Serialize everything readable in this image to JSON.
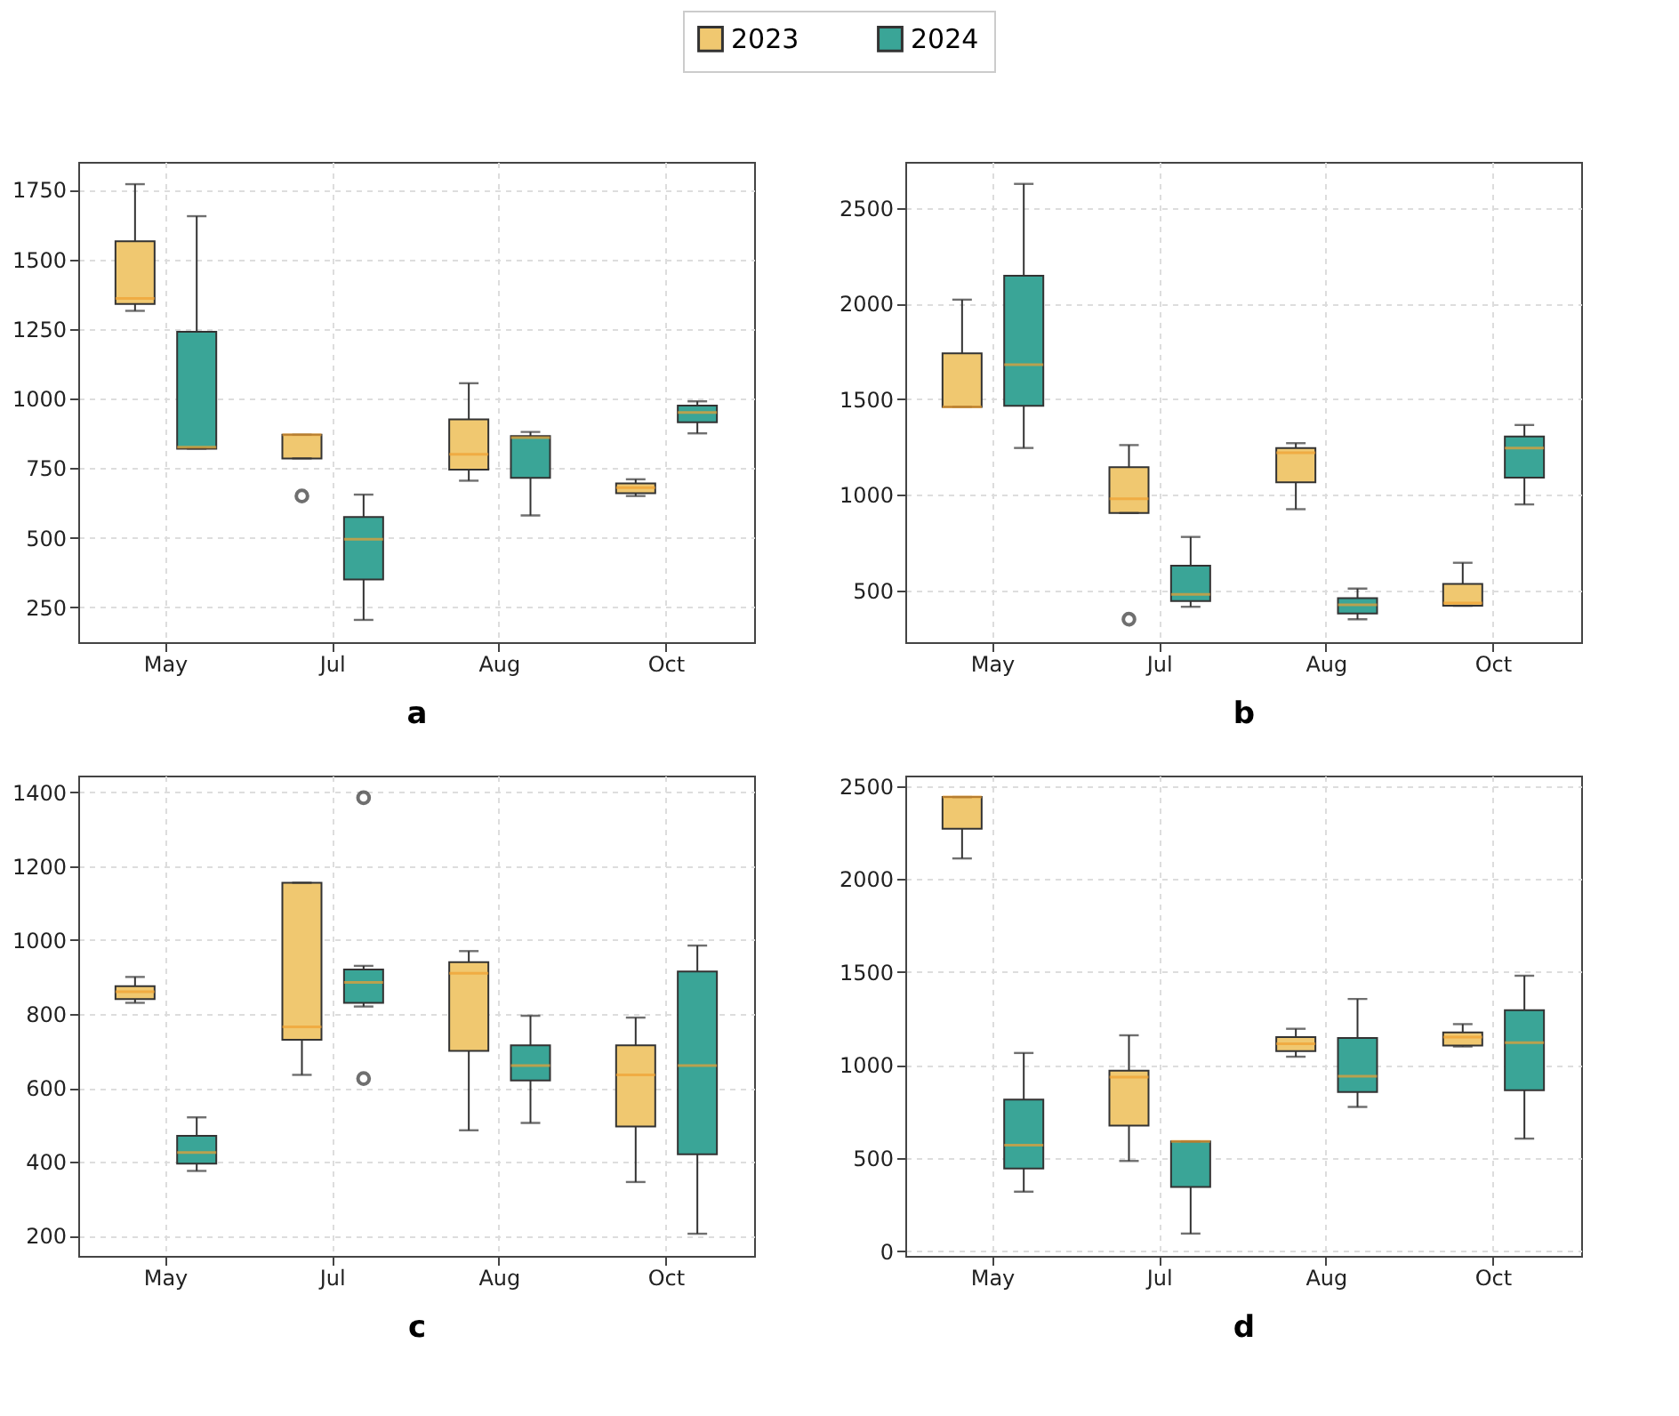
{
  "chart_data": [
    {
      "type": "box",
      "xlabel": "a",
      "categories": [
        "May",
        "Jul",
        "Aug",
        "Oct"
      ],
      "ylim": [
        125,
        1850
      ],
      "yticks": [
        250,
        500,
        750,
        1000,
        1250,
        1500,
        1750
      ],
      "grid": true,
      "legend": "top",
      "series": [
        {
          "name": "2023",
          "color": "#f0c870",
          "boxes": [
            {
              "low": 1315,
              "q1": 1340,
              "median": 1360,
              "q3": 1565,
              "high": 1770
            },
            {
              "low": 785,
              "q1": 785,
              "median": 870,
              "q3": 870,
              "high": 870,
              "outliers": [
                650
              ]
            },
            {
              "low": 705,
              "q1": 745,
              "median": 800,
              "q3": 925,
              "high": 1055
            },
            {
              "low": 650,
              "q1": 660,
              "median": 680,
              "q3": 695,
              "high": 710
            }
          ]
        },
        {
          "name": "2024",
          "color": "#3aa597",
          "boxes": [
            {
              "low": 820,
              "q1": 820,
              "median": 825,
              "q3": 1240,
              "high": 1655
            },
            {
              "low": 205,
              "q1": 350,
              "median": 495,
              "q3": 575,
              "high": 655
            },
            {
              "low": 580,
              "q1": 715,
              "median": 860,
              "q3": 865,
              "high": 880
            },
            {
              "low": 875,
              "q1": 915,
              "median": 950,
              "q3": 975,
              "high": 990
            }
          ]
        }
      ]
    },
    {
      "type": "box",
      "xlabel": "b",
      "categories": [
        "May",
        "Jul",
        "Aug",
        "Oct"
      ],
      "ylim": [
        230,
        2740
      ],
      "yticks": [
        500,
        1000,
        1500,
        2000,
        2500
      ],
      "grid": true,
      "series": [
        {
          "name": "2023",
          "color": "#f0c870",
          "boxes": [
            {
              "low": 1460,
              "q1": 1460,
              "median": 1460,
              "q3": 1740,
              "high": 2020
            },
            {
              "low": 905,
              "q1": 905,
              "median": 980,
              "q3": 1145,
              "high": 1260,
              "outliers": [
                350
              ]
            },
            {
              "low": 925,
              "q1": 1065,
              "median": 1220,
              "q3": 1245,
              "high": 1270
            },
            {
              "low": 420,
              "q1": 420,
              "median": 435,
              "q3": 535,
              "high": 645
            }
          ]
        },
        {
          "name": "2024",
          "color": "#3aa597",
          "boxes": [
            {
              "low": 1245,
              "q1": 1465,
              "median": 1680,
              "q3": 2145,
              "high": 2625
            },
            {
              "low": 415,
              "q1": 445,
              "median": 480,
              "q3": 630,
              "high": 780
            },
            {
              "low": 350,
              "q1": 380,
              "median": 425,
              "q3": 460,
              "high": 510
            },
            {
              "low": 950,
              "q1": 1090,
              "median": 1245,
              "q3": 1305,
              "high": 1365
            }
          ]
        }
      ]
    },
    {
      "type": "box",
      "xlabel": "c",
      "categories": [
        "May",
        "Jul",
        "Aug",
        "Oct"
      ],
      "ylim": [
        145,
        1445
      ],
      "yticks": [
        200,
        400,
        600,
        800,
        1000,
        1200,
        1400
      ],
      "grid": true,
      "series": [
        {
          "name": "2023",
          "color": "#f0c870",
          "boxes": [
            {
              "low": 830,
              "q1": 840,
              "median": 860,
              "q3": 875,
              "high": 900
            },
            {
              "low": 635,
              "q1": 730,
              "median": 765,
              "q3": 1155,
              "high": 1155
            },
            {
              "low": 485,
              "q1": 700,
              "median": 910,
              "q3": 940,
              "high": 970
            },
            {
              "low": 345,
              "q1": 495,
              "median": 635,
              "q3": 715,
              "high": 790
            }
          ]
        },
        {
          "name": "2024",
          "color": "#3aa597",
          "boxes": [
            {
              "low": 375,
              "q1": 395,
              "median": 425,
              "q3": 470,
              "high": 520
            },
            {
              "low": 820,
              "q1": 830,
              "median": 885,
              "q3": 920,
              "high": 930,
              "outliers": [
                1385,
                625
              ]
            },
            {
              "low": 505,
              "q1": 620,
              "median": 660,
              "q3": 715,
              "high": 795
            },
            {
              "low": 205,
              "q1": 420,
              "median": 660,
              "q3": 915,
              "high": 985
            }
          ]
        }
      ]
    },
    {
      "type": "box",
      "xlabel": "d",
      "categories": [
        "May",
        "Jul",
        "Aug",
        "Oct"
      ],
      "ylim": [
        -25,
        2555
      ],
      "yticks": [
        0,
        500,
        1000,
        1500,
        2000,
        2500
      ],
      "grid": true,
      "series": [
        {
          "name": "2023",
          "color": "#f0c870",
          "boxes": [
            {
              "low": 2110,
              "q1": 2270,
              "median": 2440,
              "q3": 2440,
              "high": 2440
            },
            {
              "low": 485,
              "q1": 675,
              "median": 935,
              "q3": 970,
              "high": 1160
            },
            {
              "low": 1045,
              "q1": 1075,
              "median": 1115,
              "q3": 1150,
              "high": 1195
            },
            {
              "low": 1100,
              "q1": 1105,
              "median": 1150,
              "q3": 1175,
              "high": 1220
            }
          ]
        },
        {
          "name": "2024",
          "color": "#3aa597",
          "boxes": [
            {
              "low": 320,
              "q1": 445,
              "median": 570,
              "q3": 815,
              "high": 1065
            },
            {
              "low": 95,
              "q1": 345,
              "median": 590,
              "q3": 590,
              "high": 590
            },
            {
              "low": 775,
              "q1": 855,
              "median": 940,
              "q3": 1145,
              "high": 1355
            },
            {
              "low": 605,
              "q1": 865,
              "median": 1120,
              "q3": 1295,
              "high": 1480
            }
          ]
        }
      ]
    }
  ]
}
